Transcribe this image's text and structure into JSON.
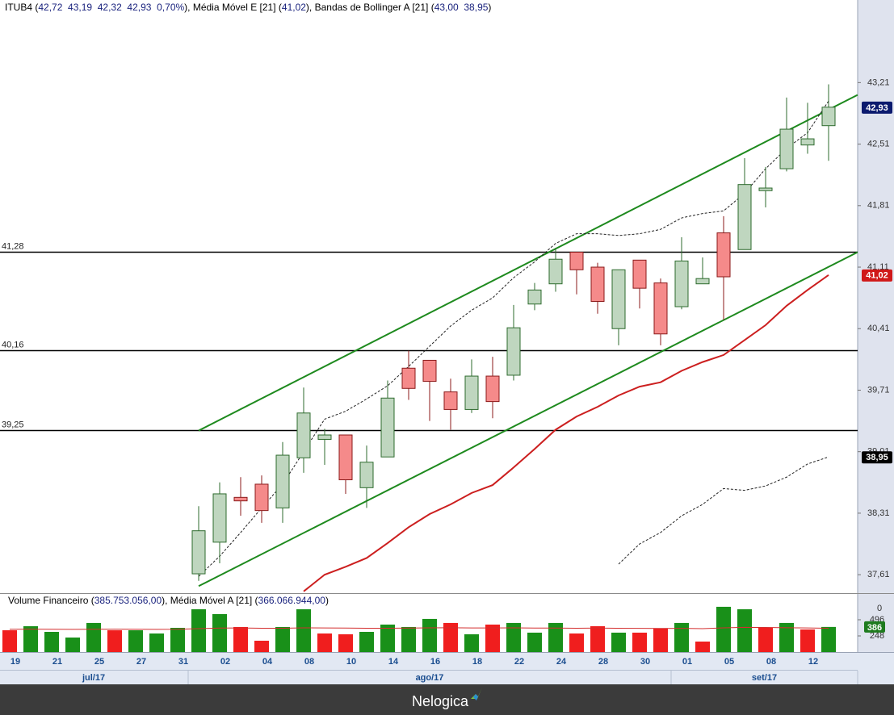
{
  "chart_data": [
    {
      "type": "candlestick",
      "header": {
        "parts": [
          {
            "text": "ITUB4 (",
            "color": "#000000"
          },
          {
            "text": "42,72  43,19  42,32  42,93  0,70%",
            "color": "#1a237e"
          },
          {
            "text": "), Média Móvel E [21] (",
            "color": "#000000"
          },
          {
            "text": "41,02",
            "color": "#1a237e"
          },
          {
            "text": "), Bandas de Bollinger A [21] (",
            "color": "#000000"
          },
          {
            "text": "43,00  38,95",
            "color": "#1a237e"
          },
          {
            "text": ")",
            "color": "#000000"
          }
        ]
      },
      "categories": [
        "19",
        null,
        "21",
        null,
        "25",
        null,
        "27",
        null,
        "31",
        null,
        "02",
        null,
        "04",
        null,
        "08",
        null,
        "10",
        null,
        "14",
        null,
        "16",
        null,
        "18",
        null,
        "22",
        null,
        "24",
        null,
        "28",
        null,
        "30",
        null,
        "01",
        null,
        "05",
        null,
        "08",
        null,
        "12",
        null
      ],
      "months": [
        {
          "label": "jul/17",
          "first": 0,
          "last": 8
        },
        {
          "label": "ago/17",
          "first": 9,
          "last": 31
        },
        {
          "label": "set/17",
          "first": 32,
          "last": 39
        }
      ],
      "open": [
        null,
        null,
        null,
        null,
        null,
        null,
        null,
        null,
        null,
        37.62,
        37.98,
        38.49,
        38.64,
        38.37,
        38.94,
        39.15,
        39.2,
        38.6,
        38.95,
        39.96,
        40.05,
        39.69,
        39.49,
        39.87,
        39.88,
        40.69,
        40.92,
        41.28,
        41.11,
        40.41,
        41.19,
        40.93,
        40.66,
        40.92,
        41.5,
        41.31,
        41.98,
        42.23,
        42.5,
        42.72
      ],
      "high": [
        null,
        null,
        null,
        null,
        null,
        null,
        null,
        null,
        null,
        38.39,
        38.66,
        38.72,
        38.74,
        39.12,
        39.74,
        39.27,
        39.2,
        39.08,
        39.82,
        40.16,
        40.05,
        39.84,
        40.06,
        40.09,
        40.68,
        40.93,
        41.33,
        41.28,
        41.16,
        41.08,
        41.19,
        40.98,
        41.45,
        41.22,
        41.69,
        42.35,
        42.25,
        43.04,
        42.98,
        43.19
      ],
      "low": [
        null,
        null,
        null,
        null,
        null,
        null,
        null,
        null,
        null,
        37.54,
        37.74,
        38.28,
        38.2,
        38.2,
        38.77,
        38.86,
        38.53,
        38.37,
        38.95,
        39.6,
        39.36,
        39.26,
        39.45,
        39.39,
        39.82,
        40.62,
        40.83,
        40.8,
        40.58,
        40.22,
        40.64,
        40.22,
        40.63,
        40.92,
        40.51,
        41.31,
        41.79,
        42.2,
        42.4,
        42.32
      ],
      "close": [
        null,
        null,
        null,
        null,
        null,
        null,
        null,
        null,
        null,
        38.11,
        38.53,
        38.45,
        38.34,
        38.97,
        39.45,
        39.2,
        38.69,
        38.89,
        39.62,
        39.73,
        39.81,
        39.49,
        39.87,
        39.58,
        40.42,
        40.85,
        41.2,
        41.08,
        40.72,
        41.08,
        40.87,
        40.35,
        41.18,
        40.98,
        41.0,
        42.05,
        42.01,
        42.68,
        42.57,
        42.93
      ],
      "up_color": "#bfd6bf",
      "up_edge": "#2e6b2e",
      "down_color": "#f58a8a",
      "down_edge": "#8b1a1a",
      "lines": [
        {
          "color": "#cc1f1f",
          "dashed": false,
          "values": [
            null,
            null,
            null,
            null,
            null,
            null,
            null,
            null,
            null,
            null,
            null,
            null,
            null,
            null,
            37.42,
            37.61,
            37.7,
            37.8,
            37.97,
            38.15,
            38.3,
            38.41,
            38.54,
            38.63,
            38.83,
            39.04,
            39.26,
            39.41,
            39.52,
            39.65,
            39.75,
            39.8,
            39.93,
            40.03,
            40.11,
            40.28,
            40.45,
            40.67,
            40.85,
            41.02
          ]
        },
        {
          "color": "#222222",
          "dashed": true,
          "values": [
            null,
            null,
            null,
            null,
            null,
            null,
            null,
            null,
            null,
            37.59,
            37.82,
            38.09,
            38.37,
            38.64,
            39.01,
            39.38,
            39.47,
            39.61,
            39.76,
            39.98,
            40.21,
            40.44,
            40.62,
            40.76,
            40.99,
            41.17,
            41.38,
            41.49,
            41.49,
            41.47,
            41.49,
            41.54,
            41.67,
            41.72,
            41.75,
            41.95,
            42.23,
            42.46,
            42.64,
            43.0
          ]
        },
        {
          "color": "#222222",
          "dashed": true,
          "values": [
            null,
            null,
            null,
            null,
            null,
            null,
            null,
            null,
            null,
            null,
            null,
            null,
            null,
            null,
            null,
            null,
            null,
            null,
            null,
            null,
            null,
            null,
            null,
            null,
            null,
            null,
            null,
            null,
            null,
            37.73,
            37.96,
            38.09,
            38.28,
            38.41,
            38.59,
            38.57,
            38.62,
            38.72,
            38.87,
            38.95
          ]
        }
      ],
      "levels": [
        {
          "value": 41.28,
          "label": "41,28"
        },
        {
          "value": 40.16,
          "label": "40,16"
        },
        {
          "value": 39.25,
          "label": "39,25"
        }
      ],
      "trend_lines": [
        {
          "x0": 9,
          "y0": 39.25,
          "x1": 40.38,
          "y1": 43.07,
          "color": "#1e8a1e"
        },
        {
          "x0": 9,
          "y0": 37.48,
          "x1": 40.38,
          "y1": 41.28,
          "color": "#1e8a1e"
        }
      ],
      "price_tags": [
        {
          "value": 42.93,
          "label": "42,93",
          "color": "#0b1a6e"
        },
        {
          "value": 41.02,
          "label": "41,02",
          "color": "#d01818"
        },
        {
          "value": 38.95,
          "label": "38,95",
          "color": "#000000"
        }
      ],
      "ylim": [
        37.4,
        44.15
      ],
      "yticks": [
        {
          "value": 43.21,
          "label": "43,21"
        },
        {
          "value": 42.51,
          "label": "42,51"
        },
        {
          "value": 41.81,
          "label": "41,81"
        },
        {
          "value": 41.11,
          "label": "41,11"
        },
        {
          "value": 40.41,
          "label": "40,41"
        },
        {
          "value": 39.71,
          "label": "39,71"
        },
        {
          "value": 39.01,
          "label": "39,01"
        },
        {
          "value": 38.31,
          "label": "38,31"
        },
        {
          "value": 37.61,
          "label": "37,61"
        }
      ]
    },
    {
      "type": "bar",
      "header": {
        "parts": [
          {
            "text": "Volume Financeiro (",
            "color": "#000000"
          },
          {
            "text": "385.753.056,00",
            "color": "#1a237e"
          },
          {
            "text": "), Média Móvel A [21] (",
            "color": "#000000"
          },
          {
            "text": "366.066.944,00",
            "color": "#1a237e"
          },
          {
            "text": ")",
            "color": "#000000"
          }
        ]
      },
      "values": [
        335,
        397,
        310,
        223,
        447,
        335,
        335,
        285,
        372,
        658,
        583,
        385,
        174,
        385,
        658,
        285,
        273,
        310,
        422,
        385,
        509,
        447,
        273,
        422,
        447,
        298,
        447,
        285,
        397,
        298,
        298,
        360,
        447,
        161,
        695,
        658,
        372,
        447,
        347,
        385.75
      ],
      "colors": [
        "#f01e1e",
        "#199019",
        "#199019",
        "#199019",
        "#199019",
        "#f01e1e",
        "#199019",
        "#199019",
        "#199019",
        "#199019",
        "#199019",
        "#f01e1e",
        "#f01e1e",
        "#199019",
        "#199019",
        "#f01e1e",
        "#f01e1e",
        "#199019",
        "#199019",
        "#199019",
        "#199019",
        "#f01e1e",
        "#199019",
        "#f01e1e",
        "#199019",
        "#199019",
        "#199019",
        "#f01e1e",
        "#f01e1e",
        "#199019",
        "#f01e1e",
        "#f01e1e",
        "#199019",
        "#f01e1e",
        "#199019",
        "#199019",
        "#f01e1e",
        "#199019",
        "#f01e1e",
        "#199019"
      ],
      "ma": {
        "color": "#d32f2f",
        "values": [
          350,
          352,
          350,
          348,
          350,
          352,
          350,
          348,
          350,
          360,
          368,
          370,
          366,
          366,
          372,
          370,
          368,
          366,
          366,
          368,
          372,
          374,
          370,
          370,
          372,
          368,
          368,
          366,
          368,
          366,
          364,
          362,
          364,
          360,
          372,
          380,
          378,
          374,
          370,
          366.07
        ]
      },
      "ylim": [
        0,
        880
      ],
      "yticks": [
        248,
        496
      ],
      "top_label": "0",
      "price_tag": {
        "value": 385.75,
        "label": "386",
        "color": "#1e7b1e"
      }
    }
  ],
  "footer": {
    "brand": "Nelogica"
  }
}
